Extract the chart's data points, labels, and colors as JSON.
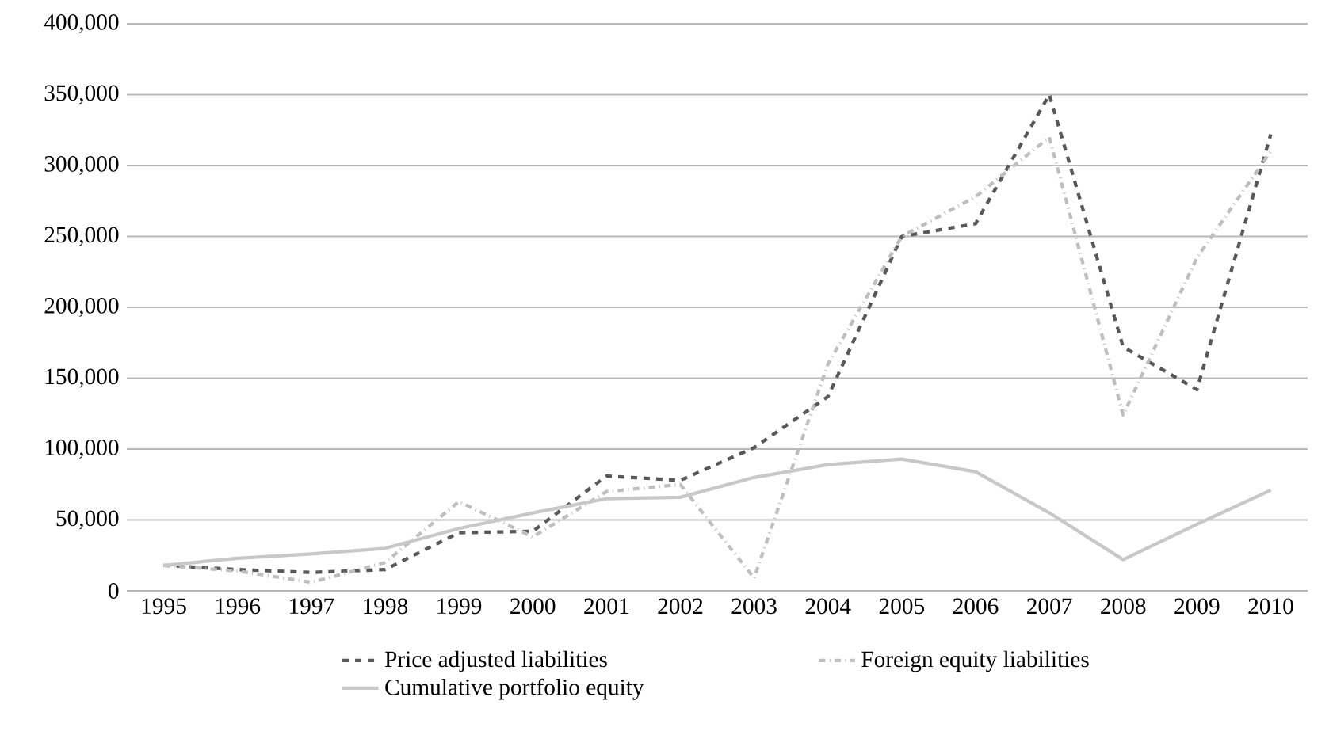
{
  "chart_data": {
    "type": "line",
    "categories": [
      "1995",
      "1996",
      "1997",
      "1998",
      "1999",
      "2000",
      "2001",
      "2002",
      "2003",
      "2004",
      "2005",
      "2006",
      "2007",
      "2008",
      "2009",
      "2010"
    ],
    "ylim": [
      0,
      400000
    ],
    "yticks": [
      {
        "value": 0,
        "label": "0"
      },
      {
        "value": 50000,
        "label": "50,000"
      },
      {
        "value": 100000,
        "label": "100,000"
      },
      {
        "value": 150000,
        "label": "150,000"
      },
      {
        "value": 200000,
        "label": "200,000"
      },
      {
        "value": 250000,
        "label": "250,000"
      },
      {
        "value": 300000,
        "label": "300,000"
      },
      {
        "value": 350000,
        "label": "350,000"
      },
      {
        "value": 400000,
        "label": "400,000"
      }
    ],
    "grid": "y",
    "legend": "bottom",
    "series": [
      {
        "name": "Price adjusted liabilities",
        "color": "#595959",
        "line_style": "dashed",
        "values": [
          18000,
          15000,
          13000,
          15000,
          41000,
          42000,
          81000,
          78000,
          101000,
          137000,
          250000,
          259000,
          350000,
          172000,
          142000,
          322000
        ]
      },
      {
        "name": "Foreign equity liabilities",
        "color": "#bfbfbf",
        "line_style": "dashdot",
        "values": [
          18000,
          14000,
          6000,
          20000,
          63000,
          38000,
          70000,
          75000,
          9000,
          160000,
          250000,
          278000,
          320000,
          124000,
          235000,
          310000
        ]
      },
      {
        "name": "Cumulative portfolio equity",
        "color": "#c8c8c8",
        "line_style": "solid",
        "values": [
          18000,
          23000,
          26000,
          30000,
          44000,
          55000,
          65000,
          66000,
          80000,
          89000,
          93000,
          84000,
          55000,
          22000,
          47000,
          71000
        ]
      }
    ]
  }
}
